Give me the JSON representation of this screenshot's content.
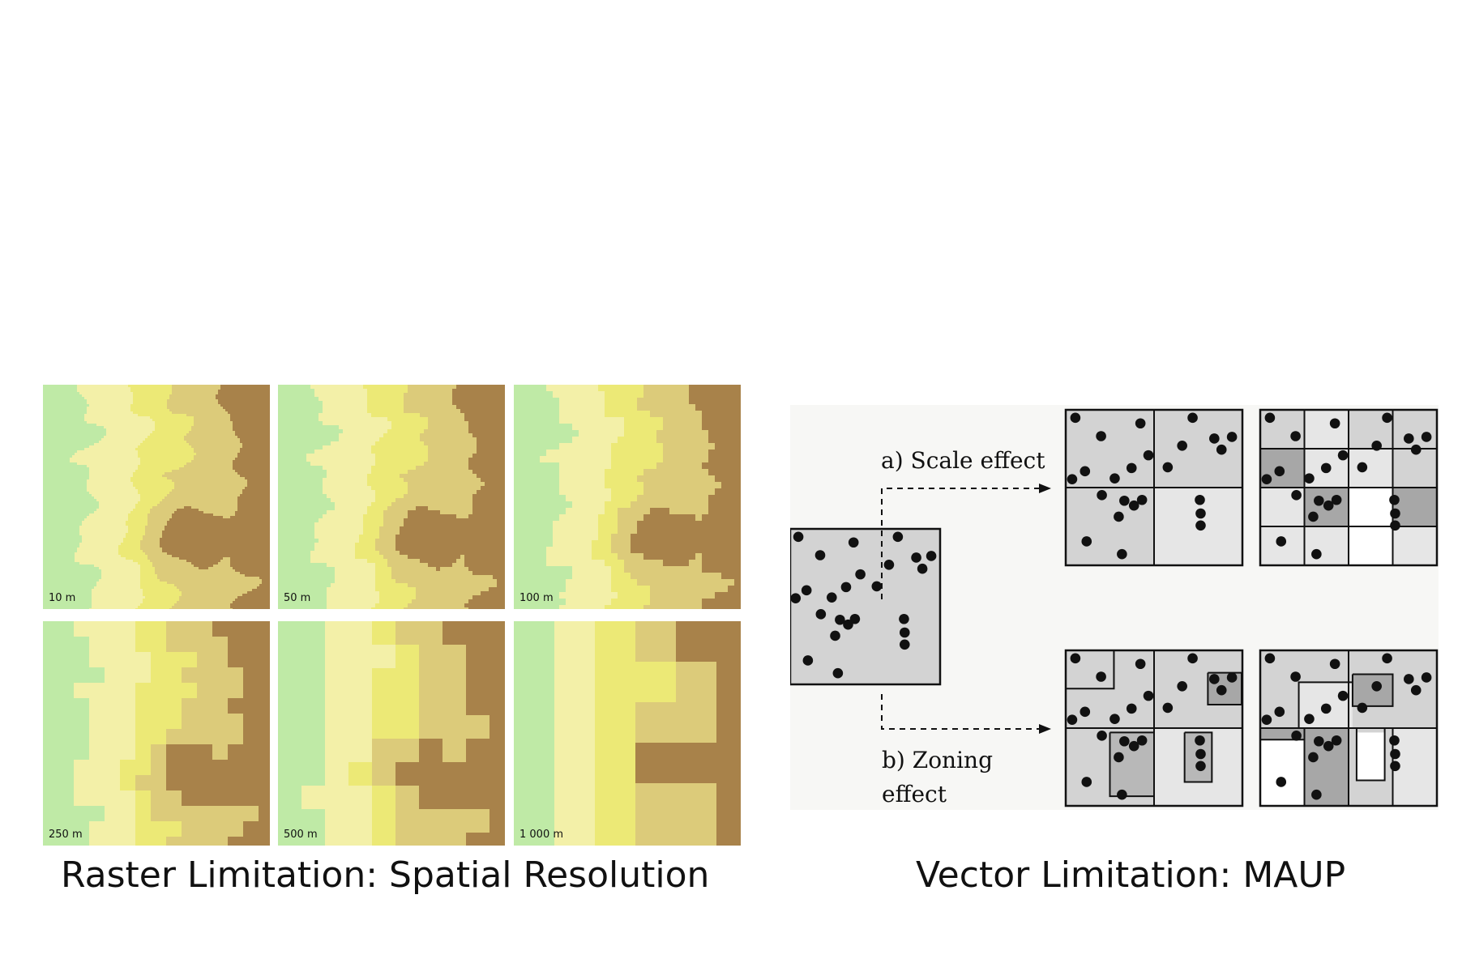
{
  "colors": {
    "green": "#bfeaa6",
    "pale_yellow": "#f3f0a8",
    "yellow": "#ece976",
    "tan": "#dccb7a",
    "dark_brown": "#a8824a",
    "cell_gray": "#d3d3d3",
    "cell_light": "#e6e6e6",
    "cell_dark": "#a7a7a7",
    "cell_white": "#ffffff"
  },
  "raster": {
    "panels": [
      {
        "label": "10 m"
      },
      {
        "label": "50 m"
      },
      {
        "label": "100 m"
      },
      {
        "label": "250 m"
      },
      {
        "label": "500 m"
      },
      {
        "label": "1 000 m"
      }
    ],
    "caption": "Raster Limitation: Spatial Resolution"
  },
  "vector": {
    "scale_label": "a) Scale effect",
    "zoning_label_line1": "b) Zoning",
    "zoning_label_line2": "effect",
    "caption": "Vector Limitation: MAUP"
  }
}
